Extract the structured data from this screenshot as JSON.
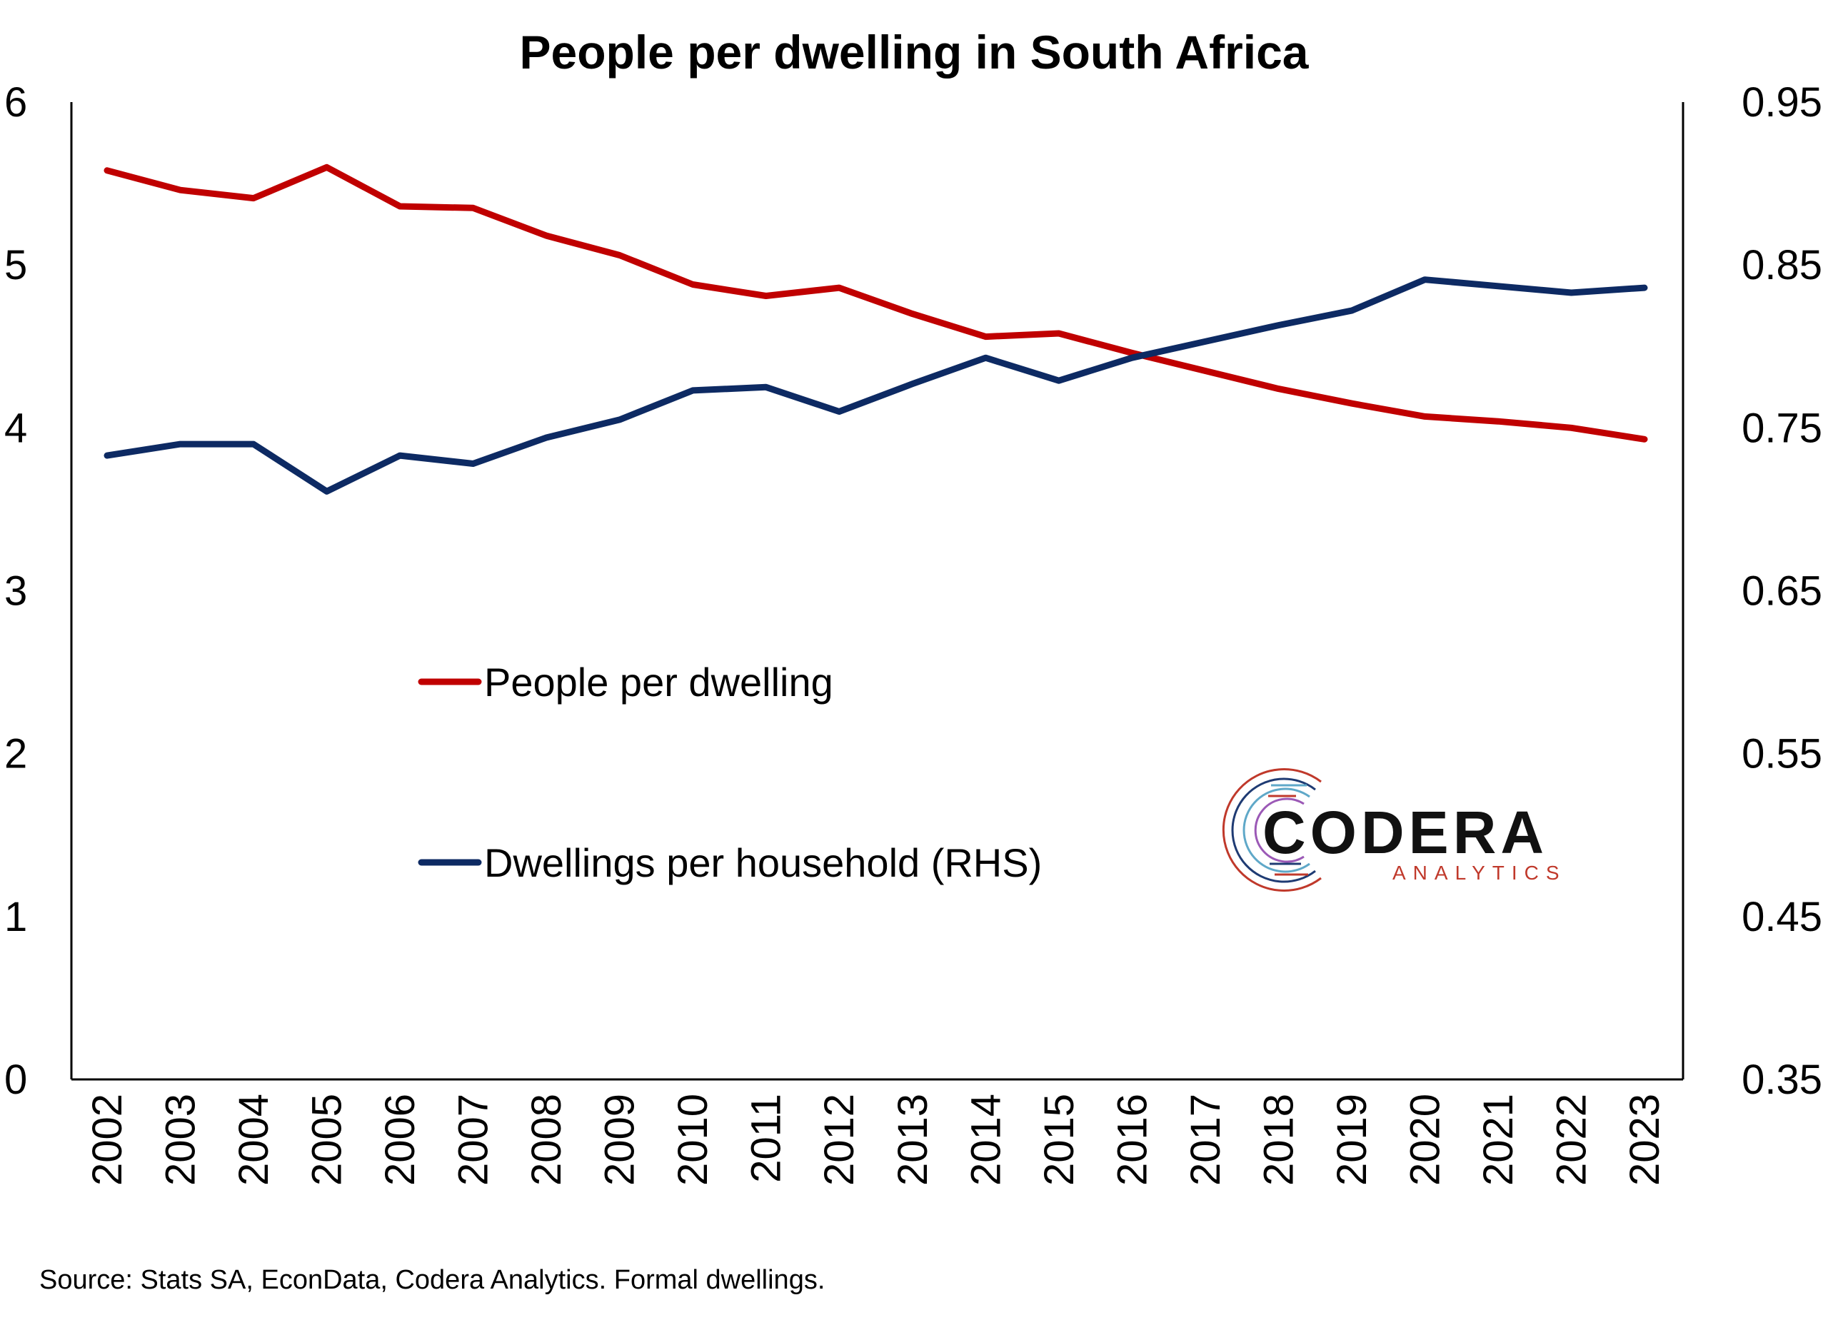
{
  "chart_data": {
    "type": "line",
    "title": "People per dwelling in South Africa",
    "categories": [
      "2002",
      "2003",
      "2004",
      "2005",
      "2006",
      "2007",
      "2008",
      "2009",
      "2010",
      "2011",
      "2012",
      "2013",
      "2014",
      "2015",
      "2016",
      "2017",
      "2018",
      "2019",
      "2020",
      "2021",
      "2022",
      "2023"
    ],
    "left_axis": {
      "ylim": [
        0,
        6
      ],
      "ticks": [
        "0",
        "1",
        "2",
        "3",
        "4",
        "5",
        "6"
      ]
    },
    "right_axis": {
      "ylim": [
        0.35,
        0.95
      ],
      "ticks": [
        "0.35",
        "0.45",
        "0.55",
        "0.65",
        "0.75",
        "0.85",
        "0.95"
      ]
    },
    "series": [
      {
        "name": "People per dwelling",
        "axis": "left",
        "color": "#c00000",
        "values": [
          5.58,
          5.46,
          5.41,
          5.6,
          5.36,
          5.35,
          5.18,
          5.06,
          4.88,
          4.81,
          4.86,
          4.7,
          4.56,
          4.58,
          4.46,
          4.35,
          4.24,
          4.15,
          4.07,
          4.04,
          4.0,
          3.93
        ]
      },
      {
        "name": "Dwellings per household (RHS)",
        "axis": "right",
        "color": "#0d2a63",
        "values": [
          0.733,
          0.74,
          0.74,
          0.711,
          0.733,
          0.728,
          0.744,
          0.755,
          0.773,
          0.775,
          0.76,
          0.777,
          0.793,
          0.779,
          0.793,
          0.803,
          0.813,
          0.822,
          0.841,
          0.837,
          0.833,
          0.836
        ]
      }
    ],
    "grid": false,
    "legend_position": "center-left"
  },
  "source_note": "Source: Stats SA, EconData, Codera Analytics. Formal dwellings.",
  "logo": {
    "name": "CODERA",
    "tagline": "ANALYTICS"
  }
}
